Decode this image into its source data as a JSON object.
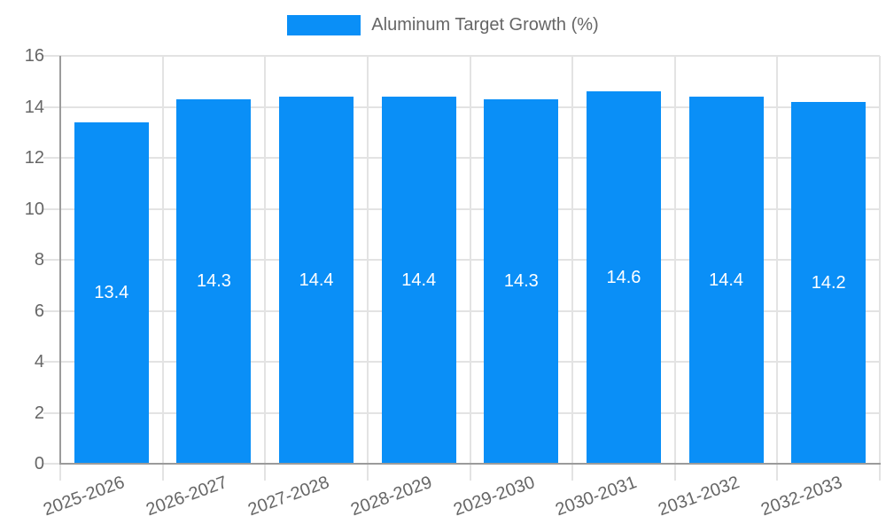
{
  "chart_data": {
    "type": "bar",
    "title": "",
    "xlabel": "",
    "ylabel": "",
    "categories": [
      "2025-2026",
      "2026-2027",
      "2027-2028",
      "2028-2029",
      "2029-2030",
      "2030-2031",
      "2031-2032",
      "2032-2033"
    ],
    "series": [
      {
        "name": "Aluminum Target Growth (%)",
        "color": "#0a8ff7",
        "values": [
          13.4,
          14.3,
          14.4,
          14.4,
          14.3,
          14.6,
          14.4,
          14.2
        ]
      }
    ],
    "value_labels": [
      "13.4",
      "14.3",
      "14.4",
      "14.4",
      "14.3",
      "14.6",
      "14.4",
      "14.2"
    ],
    "ylim": [
      0,
      16
    ],
    "ytick_step": 2,
    "ytick_labels": [
      "0",
      "2",
      "4",
      "6",
      "8",
      "10",
      "12",
      "14",
      "16"
    ],
    "grid": "both",
    "legend_position": "top"
  },
  "colors": {
    "bar_fill": "#0a8ff7",
    "axis_text": "#666666",
    "legend_text": "#666666",
    "grid_line": "#e3e3e3",
    "axis_line": "#9b9b9b",
    "value_label_text": "#ffffff",
    "background": "#ffffff"
  }
}
